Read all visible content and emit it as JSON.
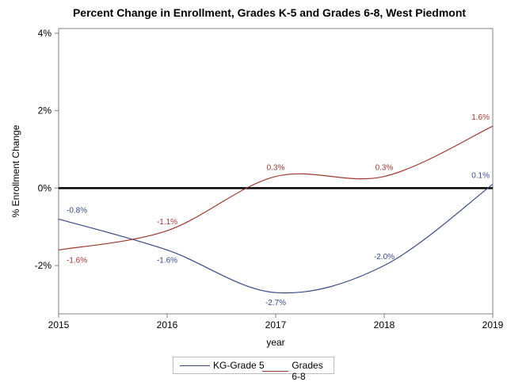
{
  "chart_data": {
    "type": "line",
    "title": "Percent Change in Enrollment, Grades K-5 and Grades 6-8, West Piedmont",
    "xlabel": "year",
    "ylabel": "% Enrollment Change",
    "x": [
      2015,
      2016,
      2017,
      2018,
      2019
    ],
    "x_tick_labels": [
      "2015",
      "2016",
      "2017",
      "2018",
      "2019"
    ],
    "y_ticks": [
      -2,
      0,
      2,
      4
    ],
    "y_tick_labels": [
      "-2%",
      "0%",
      "2%",
      "4%"
    ],
    "ylim": [
      -3.2,
      4.0
    ],
    "xlim": [
      2015,
      2019
    ],
    "reference_line_y": 0,
    "legend_position": "bottom",
    "series": [
      {
        "name": "KG-Grade 5",
        "color": "#3a4a8a",
        "values": [
          -0.8,
          -1.6,
          -2.7,
          -2.0,
          0.1
        ],
        "labels": [
          "-0.8%",
          "-1.6%",
          "-2.7%",
          "-2.0%",
          "0.1%"
        ],
        "label_positions": [
          "above",
          "below",
          "below",
          "above",
          "above"
        ]
      },
      {
        "name": "Grades 6-8",
        "color": "#a0382f",
        "values": [
          -1.6,
          -1.1,
          0.3,
          0.3,
          1.6
        ],
        "labels": [
          "-1.6%",
          "-1.1%",
          "0.3%",
          "0.3%",
          "1.6%"
        ],
        "label_positions": [
          "below",
          "above",
          "above",
          "above",
          "above"
        ]
      }
    ]
  }
}
